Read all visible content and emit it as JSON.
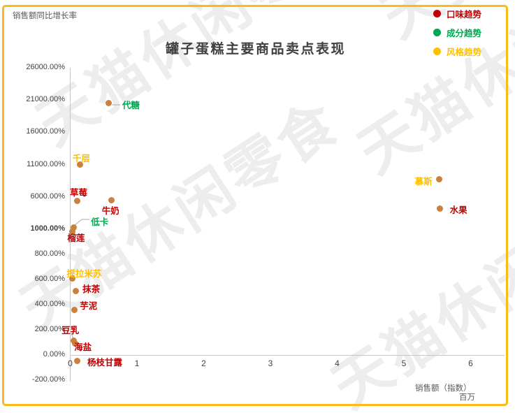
{
  "page": {
    "watermark_text": "天猫休闲零食",
    "border_color": "#f8bb17"
  },
  "chart_data": {
    "type": "scatter",
    "title": "罐子蛋糕主要商品卖点表现",
    "y_axis_title": "销售额同比增长率",
    "x_axis_title": "销售额（指数）",
    "x_axis_unit": "百万",
    "origin_label": "0",
    "grid": false,
    "legend_position": "top-right",
    "x_range": [
      0,
      6
    ],
    "x_ticks": [
      0,
      1,
      2,
      3,
      4,
      5,
      6
    ],
    "y_ticks": [
      {
        "label": "26000.00%",
        "value": 26000,
        "bold": false
      },
      {
        "label": "21000.00%",
        "value": 21000,
        "bold": false
      },
      {
        "label": "16000.00%",
        "value": 16000,
        "bold": false
      },
      {
        "label": "11000.00%",
        "value": 11000,
        "bold": false
      },
      {
        "label": "6000.00%",
        "value": 6000,
        "bold": false
      },
      {
        "label": "1000.00%",
        "value": 1000,
        "bold": true
      },
      {
        "label": "800.00%",
        "value": 800,
        "bold": false
      },
      {
        "label": "600.00%",
        "value": 600,
        "bold": false
      },
      {
        "label": "400.00%",
        "value": 400,
        "bold": false
      },
      {
        "label": "200.00%",
        "value": 200,
        "bold": false
      },
      {
        "label": "0.00%",
        "value": 0,
        "bold": false
      },
      {
        "label": "-200.00%",
        "value": -200,
        "bold": false
      }
    ],
    "y_axis_note": "broken axis: -200% to 1000% in 200% steps, then 1000% to 26000% in 5000% steps",
    "legend": [
      {
        "key": "taste",
        "label": "口味趋势",
        "color": "#c00000"
      },
      {
        "key": "ingredient",
        "label": "成分趋势",
        "color": "#00a651"
      },
      {
        "key": "style",
        "label": "风格趋势",
        "color": "#ffc000"
      }
    ],
    "dot_color": "#c8823c",
    "series": [
      {
        "name": "代糖",
        "category": "ingredient",
        "x": 0.58,
        "y_pct": 20500
      },
      {
        "name": "千层",
        "category": "style",
        "x": 0.15,
        "y_pct": 11000
      },
      {
        "name": "草莓",
        "category": "taste",
        "x": 0.1,
        "y_pct": 5400
      },
      {
        "name": "牛奶",
        "category": "taste",
        "x": 0.62,
        "y_pct": 5500
      },
      {
        "name": "慕斯",
        "category": "style",
        "x": 5.53,
        "y_pct": 8700
      },
      {
        "name": "水果",
        "category": "taste",
        "x": 5.54,
        "y_pct": 4200
      },
      {
        "name": "低卡",
        "category": "ingredient",
        "x": 0.05,
        "y_pct": 1300
      },
      {
        "name": "榴莲",
        "category": "taste",
        "x": 0.03,
        "y_pct": 980
      },
      {
        "name": "提拉米苏",
        "category": "style",
        "x": 0.03,
        "y_pct": 610
      },
      {
        "name": "抹茶",
        "category": "taste",
        "x": 0.08,
        "y_pct": 510
      },
      {
        "name": "芋泥",
        "category": "taste",
        "x": 0.06,
        "y_pct": 360
      },
      {
        "name": "豆乳",
        "category": "taste",
        "x": 0.05,
        "y_pct": 115
      },
      {
        "name": "海盐",
        "category": "taste",
        "x": 0.07,
        "y_pct": 90
      },
      {
        "name": "杨枝甘露",
        "category": "taste",
        "x": 0.1,
        "y_pct": -45
      }
    ]
  }
}
